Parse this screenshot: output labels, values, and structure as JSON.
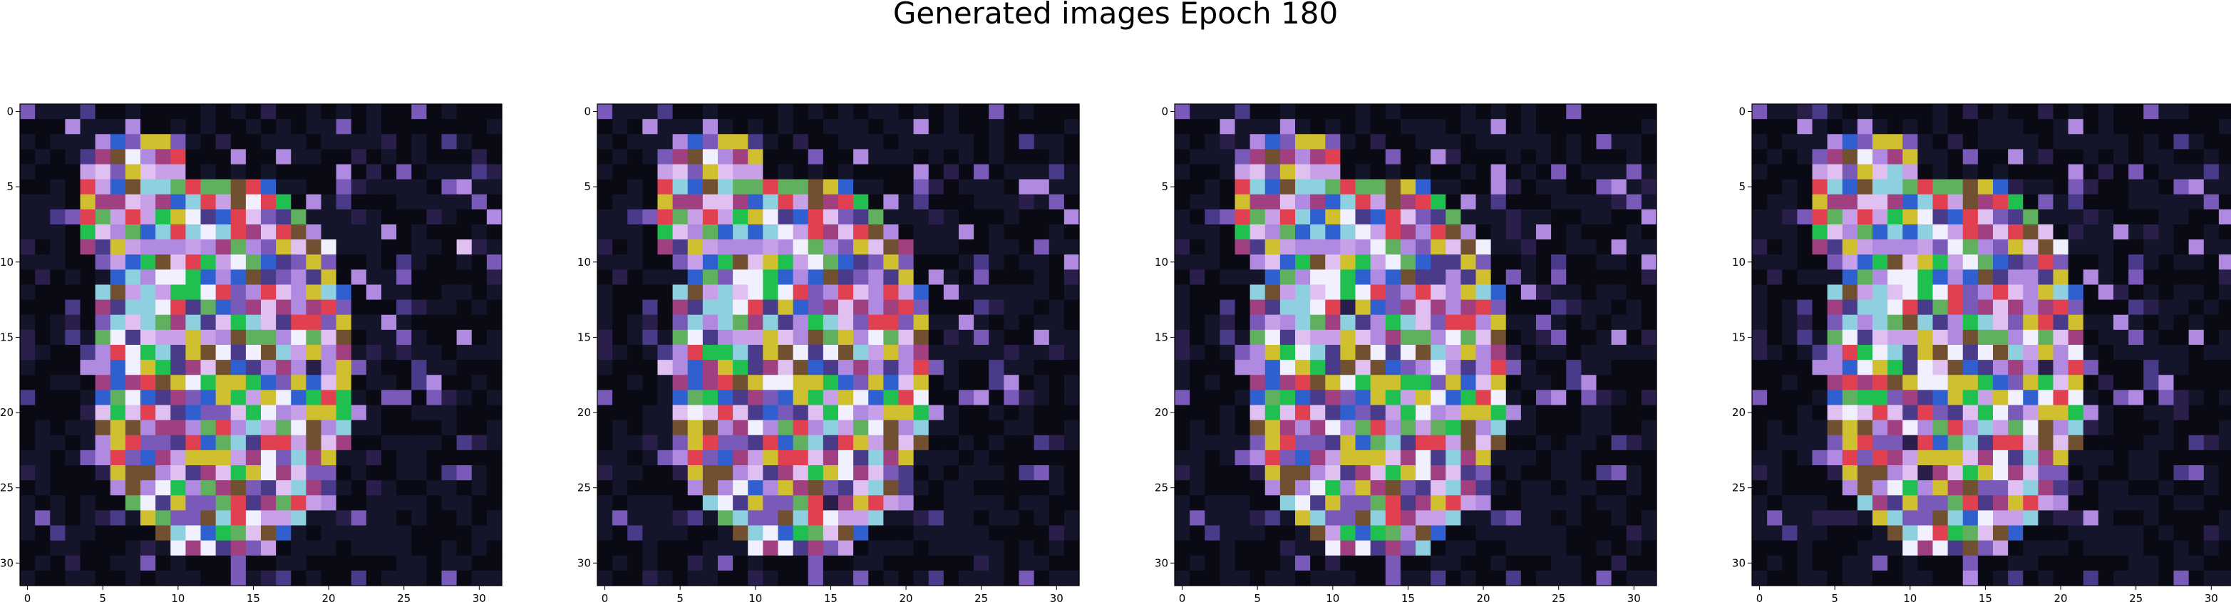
{
  "figure": {
    "title": "Generated images Epoch 180"
  },
  "panels": [
    {
      "name": "generated-image-1",
      "xticks": [
        0,
        5,
        10,
        15,
        20,
        25,
        30
      ],
      "yticks": [
        0,
        5,
        10,
        15,
        20,
        25,
        30
      ],
      "grid_size": 32
    },
    {
      "name": "generated-image-2",
      "xticks": [
        0,
        5,
        10,
        15,
        20,
        25,
        30
      ],
      "yticks": [
        0,
        5,
        10,
        15,
        20,
        25,
        30
      ],
      "grid_size": 32
    },
    {
      "name": "generated-image-3",
      "xticks": [
        0,
        5,
        10,
        15,
        20,
        25,
        30
      ],
      "yticks": [
        0,
        5,
        10,
        15,
        20,
        25,
        30
      ],
      "grid_size": 32
    },
    {
      "name": "generated-image-4",
      "xticks": [
        0,
        5,
        10,
        15,
        20,
        25,
        30
      ],
      "yticks": [
        0,
        5,
        10,
        15,
        20,
        25,
        30
      ],
      "grid_size": 32
    }
  ],
  "colors": {
    "background_pixel": "#05050d",
    "palette": [
      "#0a0a14",
      "#14142a",
      "#2a1f4a",
      "#4a3a8a",
      "#7a5ab8",
      "#b08ae0",
      "#e0c0f0",
      "#c8a0e8",
      "#8fd0e0",
      "#60b060",
      "#d0c030",
      "#e04050",
      "#3060d0",
      "#20c050",
      "#f0f0ff",
      "#a04080",
      "#705030"
    ]
  }
}
